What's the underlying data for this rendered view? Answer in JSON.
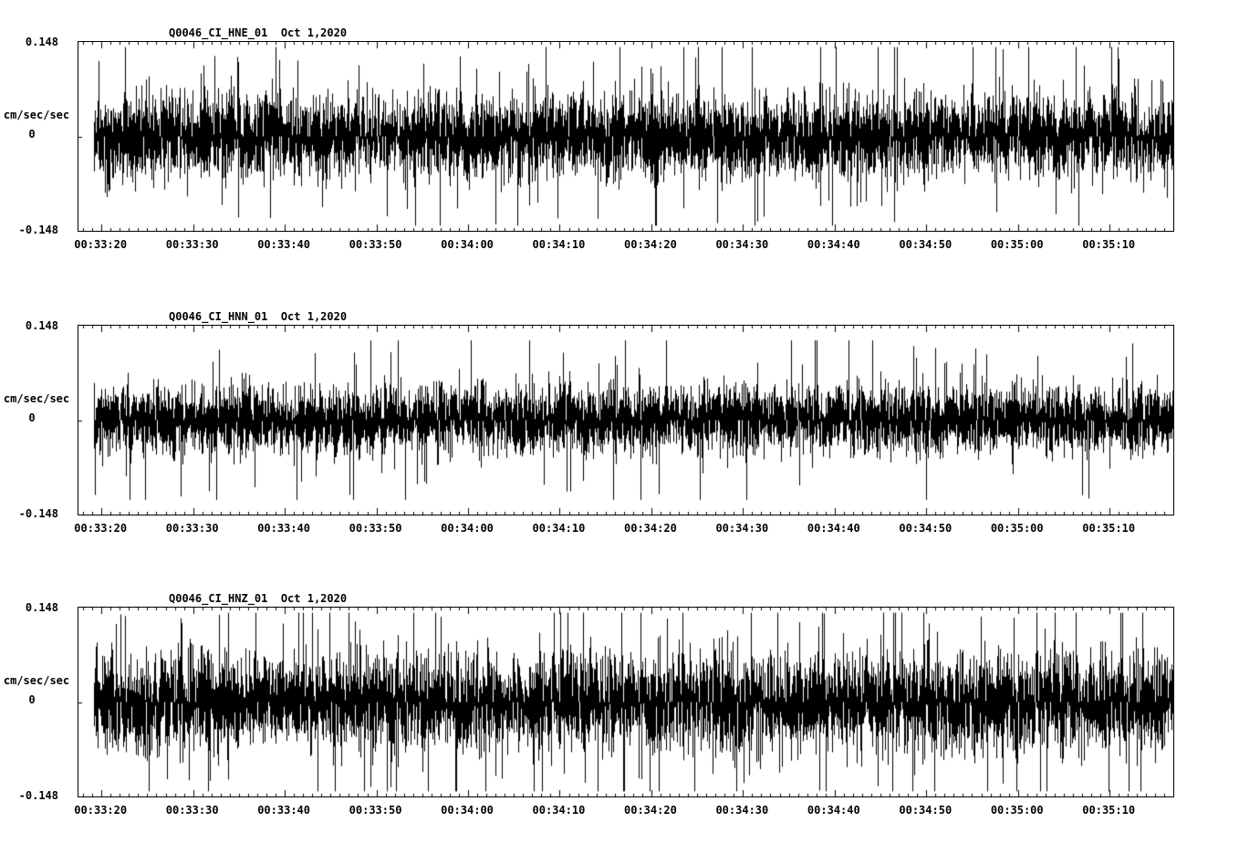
{
  "page": {
    "background": "#ffffff",
    "trace_color": "#000000",
    "description": "Three-component strong-motion seismogram record"
  },
  "chart_data": [
    {
      "type": "line",
      "kind": "seismogram-waveform",
      "title": "Q0046_CI_HNE_01  Oct 1,2020",
      "station_channel": "Q0046_CI_HNE_01",
      "date": "Oct 1,2020",
      "ylabel": "cm/sec/sec",
      "ylim": [
        -0.148,
        0.148
      ],
      "ytick_labels": {
        "top": "0.148",
        "zero": "0",
        "bottom": "-0.148"
      },
      "x_ticks": [
        "00:33:20",
        "00:33:30",
        "00:33:40",
        "00:33:50",
        "00:34:00",
        "00:34:10",
        "00:34:20",
        "00:34:30",
        "00:34:40",
        "00:34:50",
        "00:35:00",
        "00:35:10"
      ],
      "x_tick_interval_seconds": 10,
      "x_range_seconds": 120,
      "grid": false,
      "legend": false,
      "signal": {
        "description": "continuous high-frequency ground-acceleration noise",
        "rms": 0.032,
        "peak": 0.14,
        "spike_probability": 0.05,
        "spike_gain": 2.6,
        "seed": 11
      }
    },
    {
      "type": "line",
      "kind": "seismogram-waveform",
      "title": "Q0046_CI_HNN_01  Oct 1,2020",
      "station_channel": "Q0046_CI_HNN_01",
      "date": "Oct 1,2020",
      "ylabel": "cm/sec/sec",
      "ylim": [
        -0.148,
        0.148
      ],
      "ytick_labels": {
        "top": "0.148",
        "zero": "0",
        "bottom": "-0.148"
      },
      "x_ticks": [
        "00:33:20",
        "00:33:30",
        "00:33:40",
        "00:33:50",
        "00:34:00",
        "00:34:10",
        "00:34:20",
        "00:34:30",
        "00:34:40",
        "00:34:50",
        "00:35:00",
        "00:35:10"
      ],
      "x_tick_interval_seconds": 10,
      "x_range_seconds": 120,
      "grid": false,
      "legend": false,
      "signal": {
        "description": "continuous high-frequency ground-acceleration noise",
        "rms": 0.025,
        "peak": 0.125,
        "spike_probability": 0.045,
        "spike_gain": 2.5,
        "seed": 22
      }
    },
    {
      "type": "line",
      "kind": "seismogram-waveform",
      "title": "Q0046_CI_HNZ_01  Oct 1,2020",
      "station_channel": "Q0046_CI_HNZ_01",
      "date": "Oct 1,2020",
      "ylabel": "cm/sec/sec",
      "ylim": [
        -0.148,
        0.148
      ],
      "ytick_labels": {
        "top": "0.148",
        "zero": "0",
        "bottom": "-0.148"
      },
      "x_ticks": [
        "00:33:20",
        "00:33:30",
        "00:33:40",
        "00:33:50",
        "00:34:00",
        "00:34:10",
        "00:34:20",
        "00:34:30",
        "00:34:40",
        "00:34:50",
        "00:35:00",
        "00:35:10"
      ],
      "x_tick_interval_seconds": 10,
      "x_range_seconds": 120,
      "grid": false,
      "legend": false,
      "signal": {
        "description": "continuous high-frequency ground-acceleration noise",
        "rms": 0.037,
        "peak": 0.14,
        "spike_probability": 0.055,
        "spike_gain": 2.4,
        "seed": 33
      }
    }
  ]
}
